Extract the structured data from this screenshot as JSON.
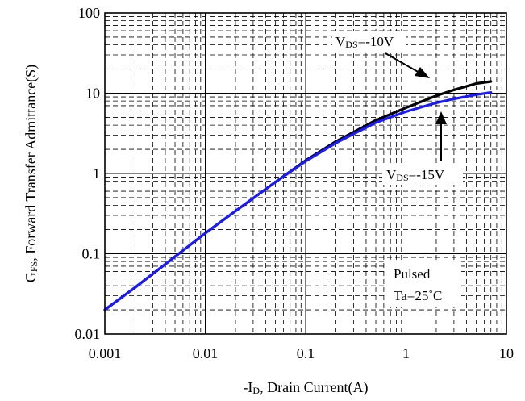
{
  "chart_data": {
    "type": "line",
    "title": "",
    "xscale": "log",
    "yscale": "log",
    "xlim": [
      0.001,
      10
    ],
    "ylim": [
      0.01,
      100
    ],
    "grid": true,
    "xticks": [
      "0.001",
      "0.01",
      "0.1",
      "1",
      "10"
    ],
    "yticks": [
      "0.01",
      "0.1",
      "1",
      "10",
      "100"
    ],
    "xlabel": {
      "prefix": "-I",
      "sub": "D",
      "suffix": ", Drain Current(A)"
    },
    "ylabel": {
      "prefix": "G",
      "sub": "FS",
      "suffix": ", Forward Transfer Admittance(S)"
    },
    "series": [
      {
        "label": {
          "prefix": "V",
          "sub": "DS",
          "suffix": "=-10V"
        },
        "color": "#000000",
        "x": [
          0.001,
          0.002,
          0.005,
          0.01,
          0.02,
          0.05,
          0.1,
          0.2,
          0.5,
          1,
          2,
          3,
          5,
          7
        ],
        "y": [
          0.02,
          0.038,
          0.092,
          0.18,
          0.34,
          0.78,
          1.45,
          2.5,
          4.6,
          6.6,
          9.3,
          11,
          13.2,
          14
        ]
      },
      {
        "label": {
          "prefix": "V",
          "sub": "DS",
          "suffix": "=-15V"
        },
        "color": "#1a1aff",
        "x": [
          0.001,
          0.002,
          0.005,
          0.01,
          0.02,
          0.05,
          0.1,
          0.2,
          0.5,
          1,
          2,
          3,
          5,
          7
        ],
        "y": [
          0.02,
          0.038,
          0.092,
          0.18,
          0.34,
          0.78,
          1.42,
          2.4,
          4.3,
          5.9,
          7.6,
          8.5,
          9.6,
          10.2
        ]
      }
    ],
    "annotations": {
      "conditions": [
        "Pulsed",
        "Ta=25˚C"
      ]
    }
  }
}
